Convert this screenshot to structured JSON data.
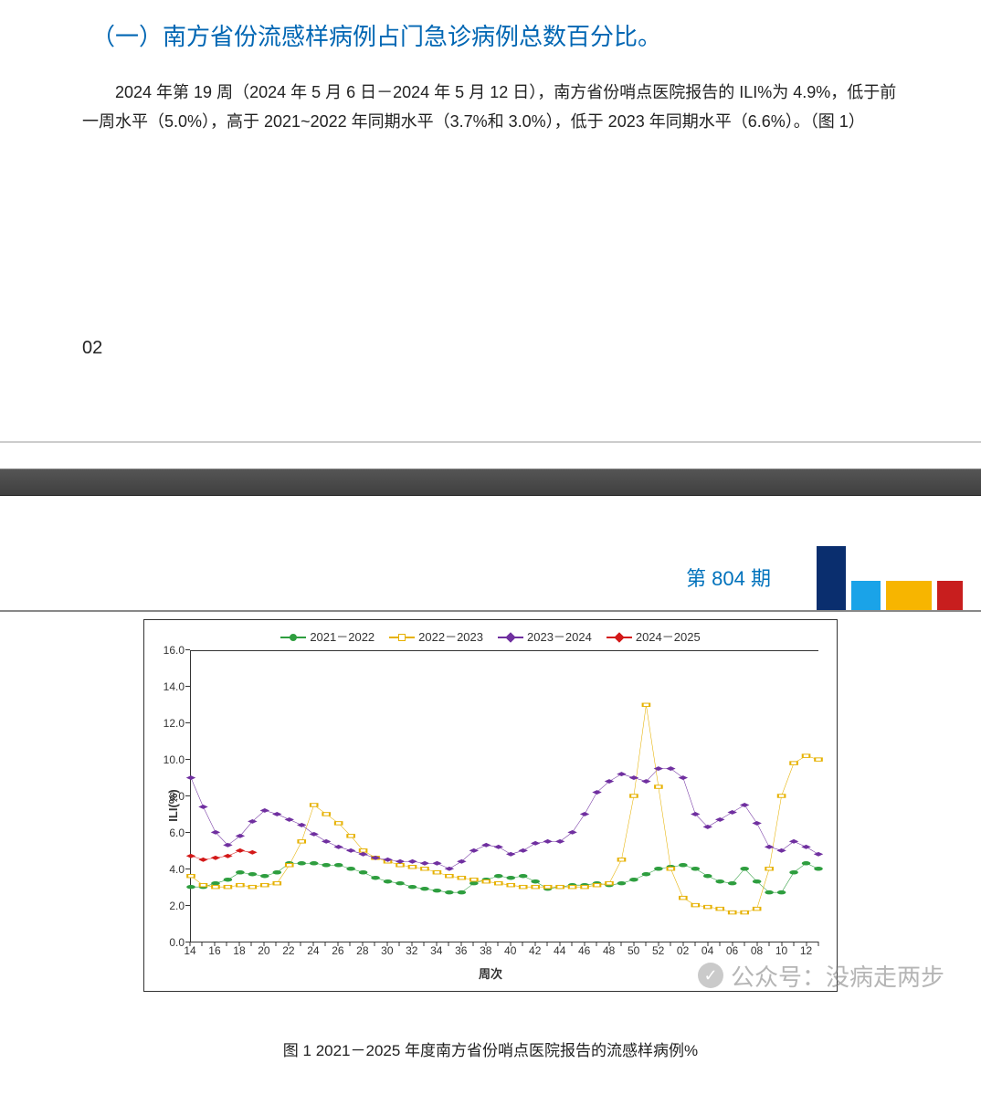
{
  "top": {
    "title": "（一）南方省份流感样病例占门急诊病例总数百分比。",
    "paragraph1": "2024 年第 19 周（2024 年 5 月 6 日－2024 年 5 月 12 日），南方省份哨点医院报告的 ILI%为 4.9%，低于前一周水平（5.0%），高于 2021~2022 年同期水平（3.7%和 3.0%），低于 2023 年同期水平（6.6%）。（图 1）",
    "page_number": "02"
  },
  "issue": {
    "label": "第 804 期",
    "blocks": [
      {
        "color": "#0a2e6e",
        "cls": "cb1"
      },
      {
        "color": "#1aa3e8",
        "cls": "cb2"
      },
      {
        "color": "#f7b500",
        "cls": "cb3"
      },
      {
        "color": "#c81e1e",
        "cls": "cb4"
      }
    ]
  },
  "chart": {
    "type": "line",
    "caption": "图 1   2021－2025 年度南方省份哨点医院报告的流感样病例%",
    "x_label": "周次",
    "y_label": "ILI(%)",
    "ylim": [
      0,
      16
    ],
    "ytick_step": 2,
    "y_decimals": 1,
    "background_color": "#ffffff",
    "border_color": "#333333",
    "line_width": 2,
    "marker_size": 5,
    "grid_color": "#333333",
    "title_fontsize": 17,
    "label_fontsize": 13,
    "tick_fontsize": 12,
    "legend_fontsize": 13,
    "weeks": [
      "14",
      "15",
      "16",
      "17",
      "18",
      "19",
      "20",
      "21",
      "22",
      "23",
      "24",
      "25",
      "26",
      "27",
      "28",
      "29",
      "30",
      "31",
      "32",
      "33",
      "34",
      "35",
      "36",
      "37",
      "38",
      "39",
      "40",
      "41",
      "42",
      "43",
      "44",
      "45",
      "46",
      "47",
      "48",
      "49",
      "50",
      "51",
      "52",
      "01",
      "02",
      "03",
      "04",
      "05",
      "06",
      "07",
      "08",
      "09",
      "10",
      "11",
      "12",
      "13"
    ],
    "x_tick_every": 2,
    "series": [
      {
        "name": "2021－2022",
        "color": "#2e9e3f",
        "marker": "circle",
        "marker_fill": "#2e9e3f",
        "values": [
          3.0,
          3.0,
          3.2,
          3.4,
          3.8,
          3.7,
          3.6,
          3.8,
          4.3,
          4.3,
          4.3,
          4.2,
          4.2,
          4.0,
          3.8,
          3.5,
          3.3,
          3.2,
          3.0,
          2.9,
          2.8,
          2.7,
          2.7,
          3.2,
          3.4,
          3.6,
          3.5,
          3.6,
          3.3,
          2.9,
          3.0,
          3.1,
          3.1,
          3.2,
          3.1,
          3.2,
          3.4,
          3.7,
          4.0,
          4.1,
          4.2,
          4.0,
          3.6,
          3.3,
          3.2,
          4.0,
          3.3,
          2.7,
          2.7,
          3.8,
          4.3,
          4.0
        ]
      },
      {
        "name": "2022－2023",
        "color": "#e6b100",
        "marker": "square",
        "marker_fill": "#ffffff",
        "values": [
          3.6,
          3.1,
          3.0,
          3.0,
          3.1,
          3.0,
          3.1,
          3.2,
          4.2,
          5.5,
          7.5,
          7.0,
          6.5,
          5.8,
          5.0,
          4.6,
          4.4,
          4.2,
          4.1,
          4.0,
          3.8,
          3.6,
          3.5,
          3.4,
          3.3,
          3.2,
          3.1,
          3.0,
          3.0,
          3.0,
          3.0,
          3.0,
          3.0,
          3.1,
          3.2,
          4.5,
          8.0,
          13.0,
          8.5,
          4.0,
          2.4,
          2.0,
          1.9,
          1.8,
          1.6,
          1.6,
          1.8,
          4.0,
          8.0,
          9.8,
          10.2,
          10.0
        ]
      },
      {
        "name": "2023－2024",
        "color": "#7030a0",
        "marker": "diamond",
        "marker_fill": "#7030a0",
        "values": [
          9.0,
          7.4,
          6.0,
          5.3,
          5.8,
          6.6,
          7.2,
          7.0,
          6.7,
          6.4,
          5.9,
          5.5,
          5.2,
          5.0,
          4.8,
          4.6,
          4.5,
          4.4,
          4.4,
          4.3,
          4.3,
          4.0,
          4.4,
          5.0,
          5.3,
          5.2,
          4.8,
          5.0,
          5.4,
          5.5,
          5.5,
          6.0,
          7.0,
          8.2,
          8.8,
          9.2,
          9.0,
          8.8,
          9.5,
          9.5,
          9.0,
          7.0,
          6.3,
          6.7,
          7.1,
          7.5,
          6.5,
          5.2,
          5.0,
          5.5,
          5.2,
          4.8
        ]
      },
      {
        "name": "2024－2025",
        "color": "#d31919",
        "marker": "diamond",
        "marker_fill": "#d31919",
        "values": [
          4.7,
          4.5,
          4.6,
          4.7,
          5.0,
          4.9
        ]
      }
    ]
  },
  "watermark": {
    "text": "公众号：没病走两步",
    "icon": "✓"
  }
}
